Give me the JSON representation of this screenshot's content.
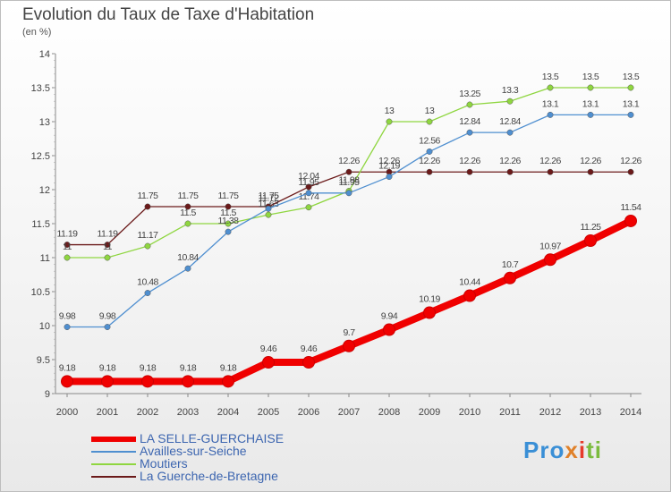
{
  "title": "Evolution du Taux de Taxe d'Habitation",
  "unit_label": "(en %)",
  "logo_text": "Proxiti",
  "chart_data": {
    "type": "line",
    "title": "Evolution du Taux de Taxe d'Habitation",
    "ylabel": "(en %)",
    "ylim": [
      9,
      14
    ],
    "yticks": [
      "9",
      "9.5",
      "10",
      "10.5",
      "11",
      "11.5",
      "12",
      "12.5",
      "13",
      "13.5",
      "14"
    ],
    "x": [
      "2000",
      "2001",
      "2002",
      "2003",
      "2004",
      "2005",
      "2006",
      "2007",
      "2008",
      "2009",
      "2010",
      "2011",
      "2012",
      "2013",
      "2014"
    ],
    "grid": false,
    "legend": "bottom-left",
    "series": [
      {
        "name": "La Guerche-de-Bretagne",
        "color": "#6b1a1a",
        "values": [
          11.19,
          11.19,
          11.75,
          11.75,
          11.75,
          11.75,
          12.04,
          12.26,
          12.26,
          12.26,
          12.26,
          12.26,
          12.26,
          12.26,
          12.26
        ]
      },
      {
        "name": "Moutiers",
        "color": "#8fd640",
        "values": [
          11,
          11,
          11.17,
          11.5,
          11.5,
          11.63,
          11.74,
          11.98,
          13,
          13,
          13.25,
          13.3,
          13.5,
          13.5,
          13.5
        ]
      },
      {
        "name": "Availles-sur-Seiche",
        "color": "#4f8fd0",
        "values": [
          9.98,
          9.98,
          10.48,
          10.84,
          11.38,
          11.72,
          11.95,
          11.95,
          12.19,
          12.56,
          12.84,
          12.84,
          13.1,
          13.1,
          13.1
        ]
      },
      {
        "name": "LA SELLE-GUERCHAISE",
        "color": "#f00000",
        "values": [
          9.18,
          9.18,
          9.18,
          9.18,
          9.18,
          9.46,
          9.46,
          9.7,
          9.94,
          10.19,
          10.44,
          10.7,
          10.97,
          11.25,
          11.54
        ]
      }
    ]
  }
}
